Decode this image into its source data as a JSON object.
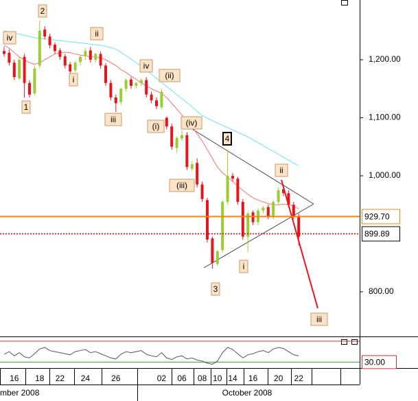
{
  "chart_data": {
    "type": "candlestick",
    "open": [
      1215,
      1212,
      1195,
      1168,
      1205,
      1160,
      1142,
      1190,
      1252,
      1240,
      1226,
      1216,
      1206,
      1192,
      1182,
      1196,
      1206,
      1216,
      1200,
      1210,
      1190,
      1160,
      1135,
      1127,
      1150,
      1166,
      1155,
      1160,
      1165,
      1140,
      1130,
      1118,
      1100,
      1085,
      1048,
      1064,
      1070,
      1012,
      1022,
      985,
      958,
      892,
      848,
      872,
      955,
      1000,
      995,
      955,
      895,
      937,
      920,
      940,
      946,
      930,
      955,
      977,
      970,
      950,
      930
    ],
    "high": [
      1222,
      1218,
      1200,
      1205,
      1210,
      1165,
      1190,
      1268,
      1258,
      1245,
      1230,
      1220,
      1210,
      1196,
      1198,
      1208,
      1220,
      1222,
      1212,
      1214,
      1194,
      1165,
      1140,
      1152,
      1168,
      1170,
      1162,
      1168,
      1170,
      1145,
      1135,
      1150,
      1102,
      1090,
      1068,
      1078,
      1075,
      1025,
      1030,
      990,
      962,
      895,
      872,
      958,
      1045,
      1005,
      998,
      960,
      938,
      940,
      944,
      948,
      950,
      958,
      980,
      985,
      975,
      955,
      935
    ],
    "low": [
      1205,
      1190,
      1165,
      1165,
      1135,
      1135,
      1138,
      1185,
      1235,
      1220,
      1210,
      1200,
      1185,
      1175,
      1178,
      1190,
      1200,
      1195,
      1195,
      1185,
      1155,
      1130,
      1110,
      1122,
      1145,
      1150,
      1150,
      1155,
      1135,
      1125,
      1115,
      1115,
      1080,
      1045,
      1040,
      1060,
      1010,
      1008,
      980,
      955,
      885,
      840,
      845,
      868,
      950,
      990,
      950,
      890,
      868,
      915,
      915,
      935,
      925,
      925,
      950,
      965,
      945,
      925,
      880
    ],
    "close": [
      1210,
      1195,
      1170,
      1200,
      1160,
      1140,
      1185,
      1250,
      1240,
      1225,
      1215,
      1205,
      1190,
      1180,
      1195,
      1205,
      1215,
      1200,
      1210,
      1190,
      1160,
      1135,
      1125,
      1150,
      1165,
      1155,
      1160,
      1165,
      1140,
      1130,
      1120,
      1145,
      1085,
      1050,
      1065,
      1070,
      1015,
      1020,
      985,
      960,
      890,
      850,
      870,
      955,
      1000,
      995,
      955,
      895,
      935,
      920,
      940,
      945,
      930,
      955,
      975,
      970,
      950,
      930,
      895
    ],
    "up_color": "#9acd32",
    "down_color": "#e8141a",
    "lines": [
      {
        "color": "#ff7070",
        "values": [
          1225,
          1220,
          1212,
          1205,
          1200,
          1195,
          1192,
          1195,
          1200,
          1205,
          1210,
          1212,
          1213,
          1212,
          1210,
          1208,
          1207,
          1205,
          1205,
          1203,
          1200,
          1195,
          1190,
          1183,
          1178,
          1172,
          1166,
          1160,
          1155,
          1150,
          1146,
          1142,
          1135,
          1125,
          1115,
          1105,
          1095,
          1085,
          1072,
          1060,
          1045,
          1030,
          1015,
          1005,
          998,
          990,
          982,
          975,
          968,
          962,
          958,
          955,
          952,
          950,
          950,
          951,
          950,
          948,
          943
        ]
      },
      {
        "color": "#66e6f2",
        "values": [
          1250,
          1248,
          1246,
          1244,
          1242,
          1240,
          1238,
          1237,
          1236,
          1235,
          1234,
          1233,
          1232,
          1231,
          1230,
          1229,
          1228,
          1227,
          1226,
          1225,
          1223,
          1221,
          1218,
          1213,
          1207,
          1201,
          1195,
          1189,
          1182,
          1175,
          1168,
          1161,
          1154,
          1147,
          1140,
          1133,
          1126,
          1119,
          1111,
          1104,
          1099,
          1095,
          1091,
          1087,
          1083,
          1079,
          1075,
          1071,
          1067,
          1062,
          1057,
          1052,
          1047,
          1042,
          1037,
          1032,
          1027,
          1022,
          1017
        ]
      }
    ],
    "ylim": [
      723,
      1303
    ],
    "yticks": [
      {
        "value": 1200,
        "label": "1,200.00"
      },
      {
        "value": 1100,
        "label": "1,100.00"
      },
      {
        "value": 1000,
        "label": "1,000.00"
      },
      {
        "value": 800,
        "label": "800.00"
      }
    ],
    "xticks": [
      {
        "value": 2,
        "label": "16"
      },
      {
        "value": 7,
        "label": "18"
      },
      {
        "value": 11,
        "label": "22"
      },
      {
        "value": 16,
        "label": "24"
      },
      {
        "value": 22,
        "label": "26"
      },
      {
        "value": 31,
        "label": "02"
      },
      {
        "value": 35,
        "label": "06"
      },
      {
        "value": 39,
        "label": "08"
      },
      {
        "value": 42,
        "label": "10"
      },
      {
        "value": 45,
        "label": "14"
      },
      {
        "value": 49,
        "label": "16"
      },
      {
        "value": 54,
        "label": "20"
      },
      {
        "value": 58,
        "label": "22"
      }
    ],
    "month_labels": [
      "mber 2008",
      "October 2008"
    ],
    "levels": [
      {
        "value": 929.7,
        "label": "929.70",
        "color": "#ff8000"
      },
      {
        "value": 899.89,
        "label": "899.89",
        "color": "#cc0000"
      }
    ],
    "wave_labels": [
      "iv",
      "2",
      "ii",
      "1",
      "i",
      "iv",
      "(ii)",
      "iii",
      "(i)",
      "(iv)",
      "4",
      "(iii)",
      "ii",
      "i",
      "3",
      "iii"
    ],
    "indicator": {
      "values": [
        45,
        50,
        42,
        48,
        40,
        38,
        46,
        55,
        58,
        52,
        50,
        48,
        46,
        44,
        50,
        52,
        54,
        48,
        50,
        46,
        42,
        38,
        36,
        45,
        50,
        48,
        50,
        52,
        45,
        42,
        40,
        48,
        38,
        35,
        40,
        42,
        36,
        38,
        34,
        32,
        28,
        26,
        32,
        48,
        58,
        54,
        46,
        38,
        44,
        46,
        50,
        52,
        48,
        55,
        58,
        56,
        50,
        44,
        42
      ],
      "ylim": [
        20,
        75
      ],
      "levels": [
        {
          "value": 30,
          "label": "30.00",
          "color": "#339933"
        },
        {
          "value": 70,
          "color": "#cc3333"
        }
      ]
    }
  }
}
